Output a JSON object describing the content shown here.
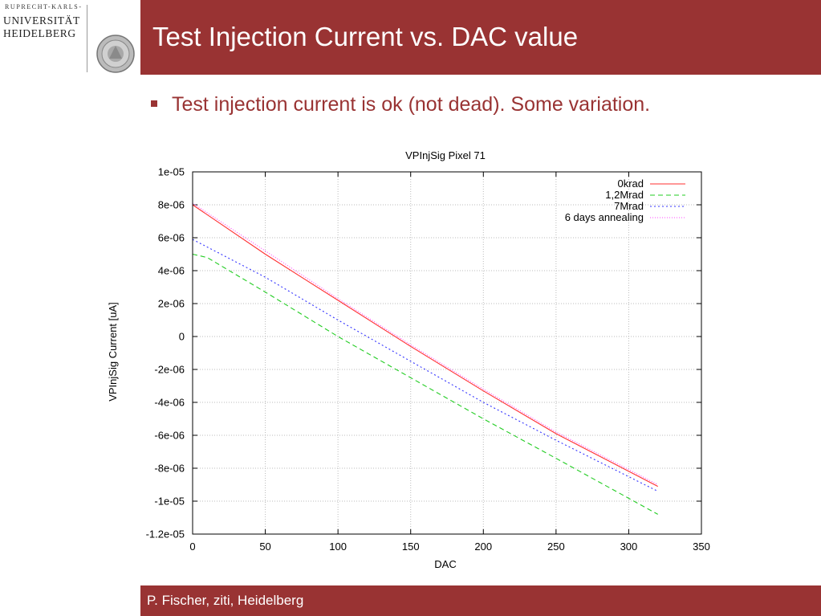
{
  "logo": {
    "line_top": "RUPRECHT-KARLS-",
    "line_1": "UNIVERSITÄT",
    "line_2": "HEIDELBERG"
  },
  "slide": {
    "title": "Test Injection Current vs. DAC value",
    "bullet": "Test injection current is ok (not dead). Some variation.",
    "footer": "P. Fischer, ziti, Heidelberg"
  },
  "colors": {
    "header": "#993333",
    "bullet_text": "#993333"
  },
  "chart_data": {
    "type": "line",
    "title": "VPInjSig Pixel 71",
    "xlabel": "DAC",
    "ylabel": "VPInjSig Current [uA]",
    "xlim": [
      0,
      350
    ],
    "ylim": [
      -1.2e-05,
      1e-05
    ],
    "xticks": [
      "0",
      "50",
      "100",
      "150",
      "200",
      "250",
      "300",
      "350"
    ],
    "yticks": [
      "1e-05",
      "8e-06",
      "6e-06",
      "4e-06",
      "2e-06",
      "0",
      "-2e-06",
      "-4e-06",
      "-6e-06",
      "-8e-06",
      "-1e-05",
      "-1.2e-05"
    ],
    "grid": true,
    "legend_position": "top-right",
    "series": [
      {
        "name": "0krad",
        "color": "#ff3030",
        "dash": "",
        "points": [
          [
            0,
            8e-06
          ],
          [
            50,
            5e-06
          ],
          [
            100,
            2.2e-06
          ],
          [
            150,
            -6e-07
          ],
          [
            200,
            -3.3e-06
          ],
          [
            250,
            -5.9e-06
          ],
          [
            320,
            -9.1e-06
          ]
        ]
      },
      {
        "name": "1,2Mrad",
        "color": "#22cc22",
        "dash": "6,4",
        "points": [
          [
            0,
            5e-06
          ],
          [
            10,
            4.8e-06
          ],
          [
            50,
            2.7e-06
          ],
          [
            100,
            0.0
          ],
          [
            150,
            -2.5e-06
          ],
          [
            200,
            -5e-06
          ],
          [
            250,
            -7.4e-06
          ],
          [
            320,
            -1.08e-05
          ]
        ]
      },
      {
        "name": "7Mrad",
        "color": "#3333ff",
        "dash": "2,3",
        "points": [
          [
            0,
            5.9e-06
          ],
          [
            50,
            3.6e-06
          ],
          [
            100,
            1e-06
          ],
          [
            150,
            -1.5e-06
          ],
          [
            200,
            -4e-06
          ],
          [
            250,
            -6.3e-06
          ],
          [
            320,
            -9.4e-06
          ]
        ]
      },
      {
        "name": "6 days annealing",
        "color": "#ff44ff",
        "dash": "1,2",
        "points": [
          [
            0,
            8.1e-06
          ],
          [
            50,
            5.2e-06
          ],
          [
            100,
            2.3e-06
          ],
          [
            150,
            -5e-07
          ],
          [
            200,
            -3.2e-06
          ],
          [
            250,
            -5.8e-06
          ],
          [
            320,
            -9e-06
          ]
        ]
      }
    ]
  }
}
